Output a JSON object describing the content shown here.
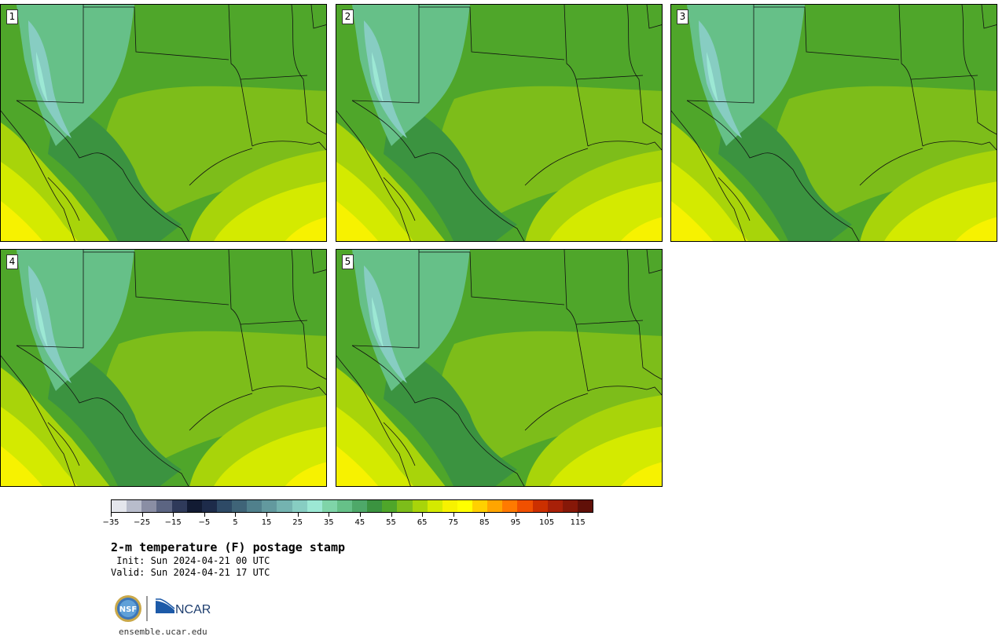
{
  "panels": [
    {
      "label": "1"
    },
    {
      "label": "2"
    },
    {
      "label": "3"
    },
    {
      "label": "4"
    },
    {
      "label": "5"
    }
  ],
  "colorbar": {
    "colors": [
      "#e4e6ec",
      "#b8bccb",
      "#8a8ea4",
      "#5c6582",
      "#2f3a5a",
      "#121b33",
      "#1d2b4a",
      "#2e4a66",
      "#3f6478",
      "#50808c",
      "#62999e",
      "#74b3b0",
      "#87cdc2",
      "#9ce8d4",
      "#7fd4a8",
      "#66c088",
      "#4ea869",
      "#3b9340",
      "#4fa62a",
      "#7dbd1a",
      "#a8d40a",
      "#d4ea00",
      "#f7f200",
      "#ffff00",
      "#ffd000",
      "#ffa500",
      "#ff7a00",
      "#f05000",
      "#cc3000",
      "#a82008",
      "#861808",
      "#601008"
    ],
    "tick_labels": [
      "−35",
      "−25",
      "−15",
      "−5",
      "5",
      "15",
      "25",
      "35",
      "45",
      "55",
      "65",
      "75",
      "85",
      "95",
      "105",
      "115"
    ],
    "vmin": -35,
    "vmax": 120
  },
  "title": "2-m temperature (F) postage stamp",
  "init": " Init: Sun 2024-04-21 00 UTC",
  "valid": "Valid: Sun 2024-04-21 17 UTC",
  "logo": {
    "nsf": "NSF",
    "ncar": "NCAR"
  },
  "url": "ensemble.ucar.edu"
}
